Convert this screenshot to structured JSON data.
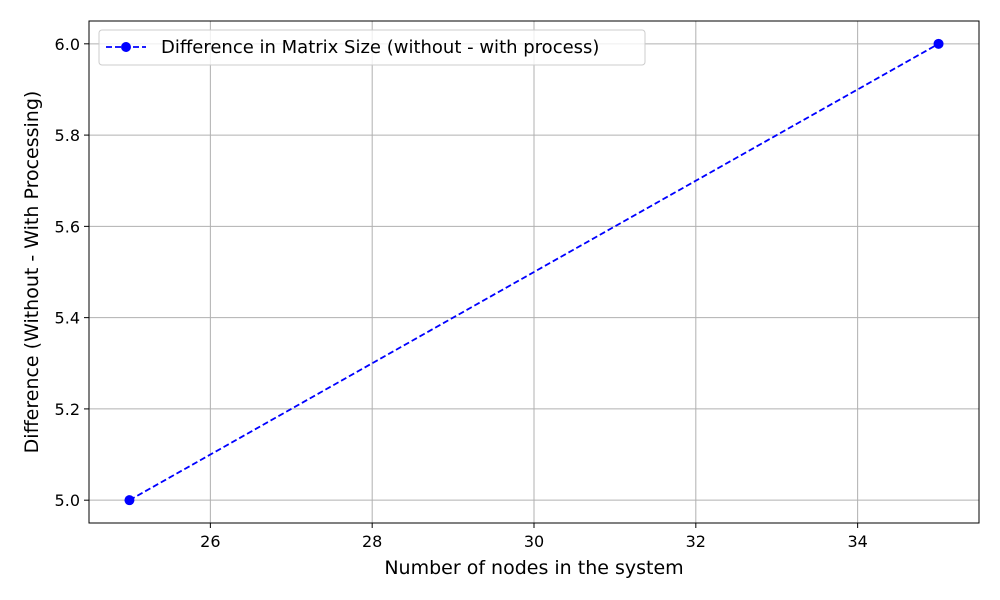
{
  "chart_data": {
    "type": "line",
    "xlabel": "Number of nodes in the system",
    "ylabel": "Difference (Without - With Processing)",
    "xlim": [
      24.5,
      35.5
    ],
    "ylim": [
      4.95,
      6.05
    ],
    "x_ticks": [
      26,
      28,
      30,
      32,
      34
    ],
    "x_tick_labels": [
      "26",
      "28",
      "30",
      "32",
      "34"
    ],
    "y_ticks": [
      5.0,
      5.2,
      5.4,
      5.6,
      5.8,
      6.0
    ],
    "y_tick_labels": [
      "5.0",
      "5.2",
      "5.4",
      "5.6",
      "5.8",
      "6.0"
    ],
    "grid": true,
    "legend_position": "top-left",
    "series": [
      {
        "name": "Difference in Matrix Size (without - with process)",
        "x": [
          25,
          35
        ],
        "y": [
          5.0,
          6.0
        ],
        "color": "#0000ff",
        "line_style": "dashed",
        "marker": "circle"
      }
    ]
  }
}
